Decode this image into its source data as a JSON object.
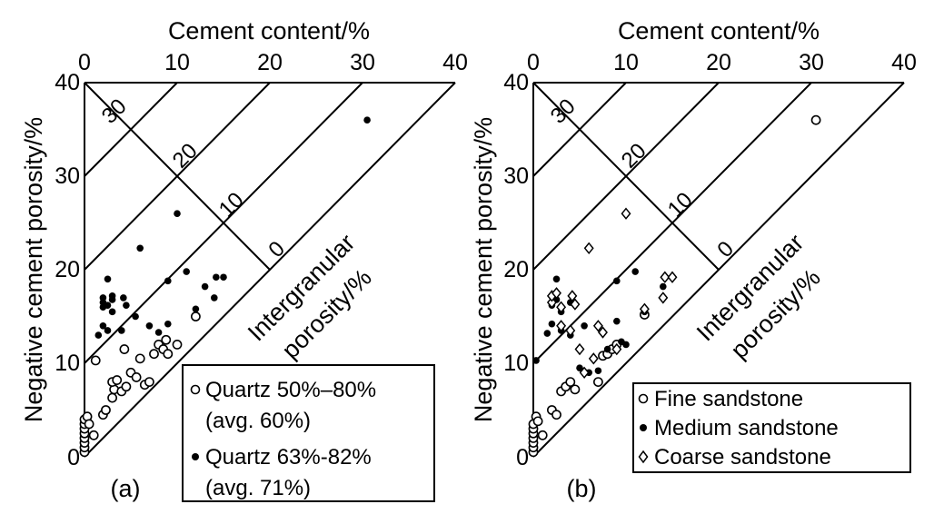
{
  "chart_data": [
    {
      "type": "scatter",
      "panel_label": "(a)",
      "xlabel": "Cement content/%",
      "ylabel": "Negative cement porosity/%",
      "xlim": [
        0,
        40
      ],
      "ylim": [
        0,
        40
      ],
      "x_ticks": [
        "0",
        "10",
        "20",
        "30",
        "40"
      ],
      "y_ticks": [
        "0",
        "10",
        "20",
        "30",
        "40"
      ],
      "isoline_axis_label": [
        "Intergranular",
        "porosity/%"
      ],
      "isolines": [
        {
          "value": 0,
          "label": "0"
        },
        {
          "value": 10,
          "label": "10"
        },
        {
          "value": 20,
          "label": "20"
        },
        {
          "value": 30,
          "label": "30"
        }
      ],
      "legend": {
        "position": "bottom-right",
        "entries": [
          {
            "lines": [
              "Quartz 50%–80%",
              "(avg. 60%)"
            ],
            "marker": "open-circle"
          },
          {
            "lines": [
              "Quartz 63%-82%",
              "(avg. 71%)"
            ],
            "marker": "filled-circle"
          }
        ]
      },
      "series": [
        {
          "marker": "open-circle",
          "points": [
            [
              0,
              0.5
            ],
            [
              0,
              1
            ],
            [
              0,
              1.5
            ],
            [
              0,
              2
            ],
            [
              0,
              2.5
            ],
            [
              0,
              3
            ],
            [
              0,
              3.5
            ],
            [
              0,
              4
            ],
            [
              0.3,
              4.3
            ],
            [
              0.5,
              3.5
            ],
            [
              1.2,
              10.3
            ],
            [
              1,
              2.3
            ],
            [
              2,
              4.5
            ],
            [
              2.3,
              5
            ],
            [
              3,
              6.3
            ],
            [
              3.2,
              7.2
            ],
            [
              3,
              8
            ],
            [
              3.5,
              8.2
            ],
            [
              4,
              7
            ],
            [
              4.3,
              11.5
            ],
            [
              4.5,
              7.5
            ],
            [
              5,
              9
            ],
            [
              5.6,
              8.5
            ],
            [
              6,
              10.5
            ],
            [
              6.5,
              7.7
            ],
            [
              7,
              8
            ],
            [
              7.5,
              11
            ],
            [
              8,
              12
            ],
            [
              8.5,
              11.5
            ],
            [
              8.8,
              12.5
            ],
            [
              9,
              11
            ],
            [
              10,
              12
            ],
            [
              12,
              15
            ]
          ]
        },
        {
          "marker": "filled-circle",
          "points": [
            [
              1.5,
              13
            ],
            [
              2,
              14
            ],
            [
              2.5,
              13.5
            ],
            [
              2,
              16
            ],
            [
              2,
              16.5
            ],
            [
              2,
              17
            ],
            [
              2.5,
              16.2
            ],
            [
              3,
              15.5
            ],
            [
              3,
              16.8
            ],
            [
              3,
              17.2
            ],
            [
              2.5,
              19
            ],
            [
              4,
              13.5
            ],
            [
              4.2,
              17
            ],
            [
              4.5,
              16.2
            ],
            [
              5.5,
              15
            ],
            [
              6,
              22.3
            ],
            [
              7,
              14
            ],
            [
              8,
              13.3
            ],
            [
              9,
              18.8
            ],
            [
              9,
              14.2
            ],
            [
              10,
              26
            ],
            [
              11,
              19.8
            ],
            [
              12,
              15.8
            ],
            [
              13,
              18.2
            ],
            [
              14,
              17
            ],
            [
              14.2,
              19.2
            ],
            [
              15,
              19.2
            ],
            [
              30.5,
              36
            ]
          ]
        }
      ]
    },
    {
      "type": "scatter",
      "panel_label": "(b)",
      "xlabel": "Cement content/%",
      "ylabel": "Negative cement porosity/%",
      "xlim": [
        0,
        40
      ],
      "ylim": [
        0,
        40
      ],
      "x_ticks": [
        "0",
        "10",
        "20",
        "30",
        "40"
      ],
      "y_ticks": [
        "0",
        "10",
        "20",
        "30",
        "40"
      ],
      "isoline_axis_label": [
        "Intergranular",
        "porosity/%"
      ],
      "isolines": [
        {
          "value": 0,
          "label": "0"
        },
        {
          "value": 10,
          "label": "10"
        },
        {
          "value": 20,
          "label": "20"
        },
        {
          "value": 30,
          "label": "30"
        }
      ],
      "legend": {
        "position": "bottom-right",
        "entries": [
          {
            "lines": [
              "Fine sandstone"
            ],
            "marker": "open-circle"
          },
          {
            "lines": [
              "Medium sandstone"
            ],
            "marker": "filled-circle"
          },
          {
            "lines": [
              "Coarse sandstone"
            ],
            "marker": "open-diamond"
          }
        ]
      },
      "series": [
        {
          "marker": "open-circle",
          "points": [
            [
              0,
              0.5
            ],
            [
              0,
              1
            ],
            [
              0,
              1.5
            ],
            [
              0,
              2
            ],
            [
              0,
              2.5
            ],
            [
              0,
              3
            ],
            [
              0,
              3.5
            ],
            [
              0.3,
              4.3
            ],
            [
              0.5,
              3.8
            ],
            [
              1,
              2.3
            ],
            [
              2,
              5
            ],
            [
              2.5,
              4.5
            ],
            [
              3,
              7
            ],
            [
              3.5,
              7.5
            ],
            [
              4,
              8
            ],
            [
              4.5,
              7.2
            ],
            [
              7,
              8
            ],
            [
              7.5,
              10.8
            ],
            [
              8,
              11
            ],
            [
              8.5,
              11.5
            ],
            [
              9,
              12
            ],
            [
              12,
              15.2
            ],
            [
              30.5,
              36
            ]
          ]
        },
        {
          "marker": "filled-circle",
          "points": [
            [
              0.3,
              10.3
            ],
            [
              1.5,
              13.2
            ],
            [
              2,
              14.2
            ],
            [
              2,
              16.2
            ],
            [
              2.5,
              16.8
            ],
            [
              2.5,
              19
            ],
            [
              3,
              13.5
            ],
            [
              3,
              15.5
            ],
            [
              4,
              13
            ],
            [
              4,
              16.5
            ],
            [
              5,
              9.5
            ],
            [
              5.5,
              14
            ],
            [
              6,
              9
            ],
            [
              7,
              9.2
            ],
            [
              8,
              11.5
            ],
            [
              9,
              14.5
            ],
            [
              9,
              18.8
            ],
            [
              9.5,
              12.3
            ],
            [
              10,
              12
            ],
            [
              11,
              19.8
            ],
            [
              12,
              15.5
            ],
            [
              14,
              18.2
            ]
          ]
        },
        {
          "marker": "open-diamond",
          "points": [
            [
              2,
              16.5
            ],
            [
              2,
              17.2
            ],
            [
              2.5,
              17.5
            ],
            [
              3,
              16
            ],
            [
              3,
              14
            ],
            [
              4,
              13.5
            ],
            [
              4.2,
              17.2
            ],
            [
              4.5,
              16.3
            ],
            [
              5,
              11.5
            ],
            [
              5.5,
              9
            ],
            [
              6,
              22.3
            ],
            [
              6.5,
              10.5
            ],
            [
              7,
              14
            ],
            [
              7.5,
              13.3
            ],
            [
              9,
              11.5
            ],
            [
              10,
              26
            ],
            [
              12,
              15.8
            ],
            [
              14,
              17
            ],
            [
              14.2,
              19.2
            ],
            [
              15,
              19.2
            ]
          ]
        }
      ]
    }
  ]
}
